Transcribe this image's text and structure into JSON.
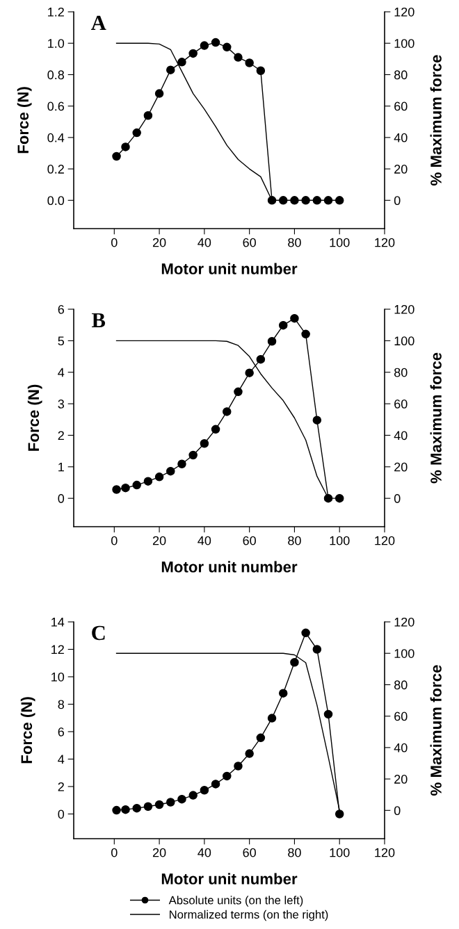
{
  "chart_data": [
    {
      "type": "line",
      "title": "A",
      "xlabel": "Motor unit number",
      "ylabel": "Force (N)",
      "y2label": "% Maximum force",
      "xlim": [
        -18,
        120
      ],
      "xticks": [
        0,
        20,
        40,
        60,
        80,
        100,
        120
      ],
      "ylim": [
        -0.18,
        1.2
      ],
      "yticks": [
        {
          "value": 0,
          "label": "0.0"
        },
        {
          "value": 0.2,
          "label": "0.2"
        },
        {
          "value": 0.4,
          "label": "0.4"
        },
        {
          "value": 0.6,
          "label": "0.6"
        },
        {
          "value": 0.8,
          "label": "0.8"
        },
        {
          "value": 1.0,
          "label": "1.0"
        },
        {
          "value": 1.2,
          "label": "1.2"
        }
      ],
      "y2lim": [
        -18,
        120
      ],
      "y2ticks": [
        0,
        20,
        40,
        60,
        80,
        100,
        120
      ],
      "grid": false,
      "series": [
        {
          "color": "#000000",
          "marker": "circle",
          "x": [
            1,
            5,
            10,
            15,
            20,
            25,
            30,
            35,
            40,
            45,
            50,
            55,
            60,
            65,
            70,
            75,
            80,
            85,
            90,
            95,
            100
          ],
          "values": [
            0.28,
            0.34,
            0.43,
            0.54,
            0.68,
            0.83,
            0.88,
            0.935,
            0.985,
            1.005,
            0.975,
            0.91,
            0.875,
            0.825,
            0,
            0,
            0,
            0,
            0,
            0,
            0
          ]
        },
        {
          "color": "#000000",
          "marker": "none",
          "axis": "y2",
          "x": [
            1,
            15,
            20,
            25,
            30,
            35,
            40,
            45,
            50,
            55,
            60,
            65,
            70
          ],
          "values": [
            100,
            100,
            99.5,
            96,
            82,
            68,
            58,
            47,
            35,
            26,
            20,
            15,
            0
          ]
        }
      ]
    },
    {
      "type": "line",
      "title": "B",
      "xlabel": "Motor unit number",
      "ylabel": "Force (N)",
      "y2label": "% Maximum force",
      "xlim": [
        -18,
        120
      ],
      "xticks": [
        0,
        20,
        40,
        60,
        80,
        100,
        120
      ],
      "ylim": [
        -0.9,
        6
      ],
      "yticks": [
        0,
        1,
        2,
        3,
        4,
        5,
        6
      ],
      "y2lim": [
        -18,
        120
      ],
      "y2ticks": [
        0,
        20,
        40,
        60,
        80,
        100,
        120
      ],
      "grid": false,
      "series": [
        {
          "color": "#000000",
          "marker": "circle",
          "x": [
            1,
            5,
            10,
            15,
            20,
            25,
            30,
            35,
            40,
            45,
            50,
            55,
            60,
            65,
            70,
            75,
            80,
            85,
            90,
            95,
            100
          ],
          "values": [
            0.28,
            0.33,
            0.42,
            0.54,
            0.68,
            0.86,
            1.09,
            1.37,
            1.74,
            2.19,
            2.75,
            3.38,
            3.98,
            4.41,
            4.98,
            5.49,
            5.71,
            5.21,
            2.48,
            0,
            0
          ]
        },
        {
          "color": "#000000",
          "marker": "none",
          "axis": "y2",
          "x": [
            1,
            40,
            45,
            50,
            55,
            60,
            65,
            70,
            75,
            80,
            85,
            90,
            95
          ],
          "values": [
            100,
            100,
            100,
            99.6,
            97,
            90,
            79,
            70,
            62,
            51,
            37,
            14,
            0
          ]
        }
      ]
    },
    {
      "type": "line",
      "title": "C",
      "xlabel": "Motor unit number",
      "ylabel": "Force (N)",
      "y2label": "% Maximum force",
      "xlim": [
        -18,
        120
      ],
      "xticks": [
        0,
        20,
        40,
        60,
        80,
        100,
        120
      ],
      "ylim": [
        -1.8,
        14
      ],
      "yticks": [
        0,
        2,
        4,
        6,
        8,
        10,
        12,
        14
      ],
      "y2lim": [
        -18,
        120
      ],
      "y2ticks": [
        0,
        20,
        40,
        60,
        80,
        100,
        120
      ],
      "grid": false,
      "legend": "bottom",
      "series": [
        {
          "name": "Absolute units (on the left)",
          "color": "#000000",
          "marker": "circle",
          "x": [
            1,
            5,
            10,
            15,
            20,
            25,
            30,
            35,
            40,
            45,
            50,
            55,
            60,
            65,
            70,
            75,
            80,
            85,
            90,
            95,
            100
          ],
          "values": [
            0.27,
            0.32,
            0.42,
            0.54,
            0.68,
            0.86,
            1.08,
            1.36,
            1.73,
            2.18,
            2.76,
            3.49,
            4.4,
            5.55,
            6.98,
            8.8,
            11.05,
            13.2,
            12.0,
            7.27,
            0
          ]
        },
        {
          "name": "Normalized terms (on the right)",
          "color": "#000000",
          "marker": "none",
          "axis": "y2",
          "x": [
            1,
            75,
            80,
            85,
            90,
            95,
            100
          ],
          "values": [
            100,
            100,
            99,
            94,
            67,
            34,
            0
          ]
        }
      ]
    }
  ]
}
